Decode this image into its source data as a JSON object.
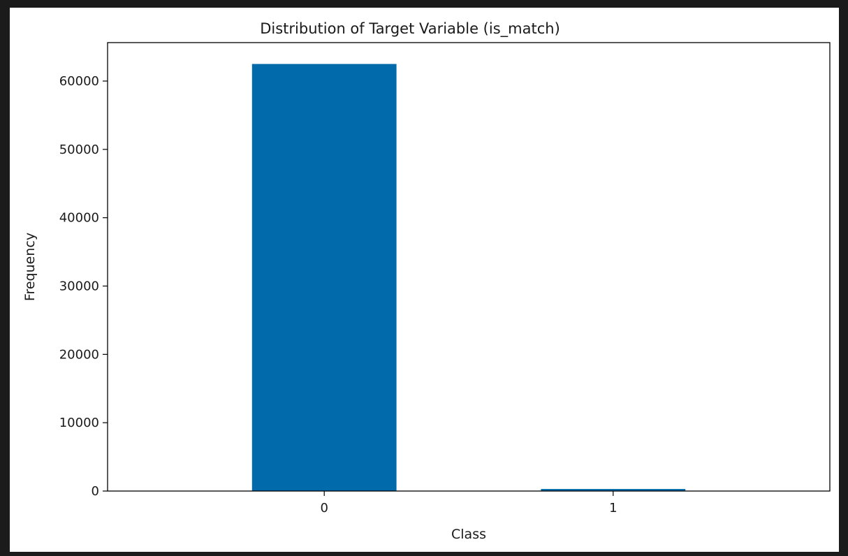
{
  "colors": {
    "bar": "#006aab",
    "axis": "#000000",
    "text": "#1a1a1a",
    "background": "#ffffff",
    "frame": "#1b1b1b"
  },
  "chart_data": {
    "type": "bar",
    "title": "Distribution of Target Variable (is_match)",
    "xlabel": "Class",
    "ylabel": "Frequency",
    "categories": [
      "0",
      "1"
    ],
    "values": [
      62500,
      300
    ],
    "ylim": [
      0,
      65625
    ],
    "yticks": [
      0,
      10000,
      20000,
      30000,
      40000,
      50000,
      60000
    ],
    "grid": false,
    "legend": "none"
  }
}
